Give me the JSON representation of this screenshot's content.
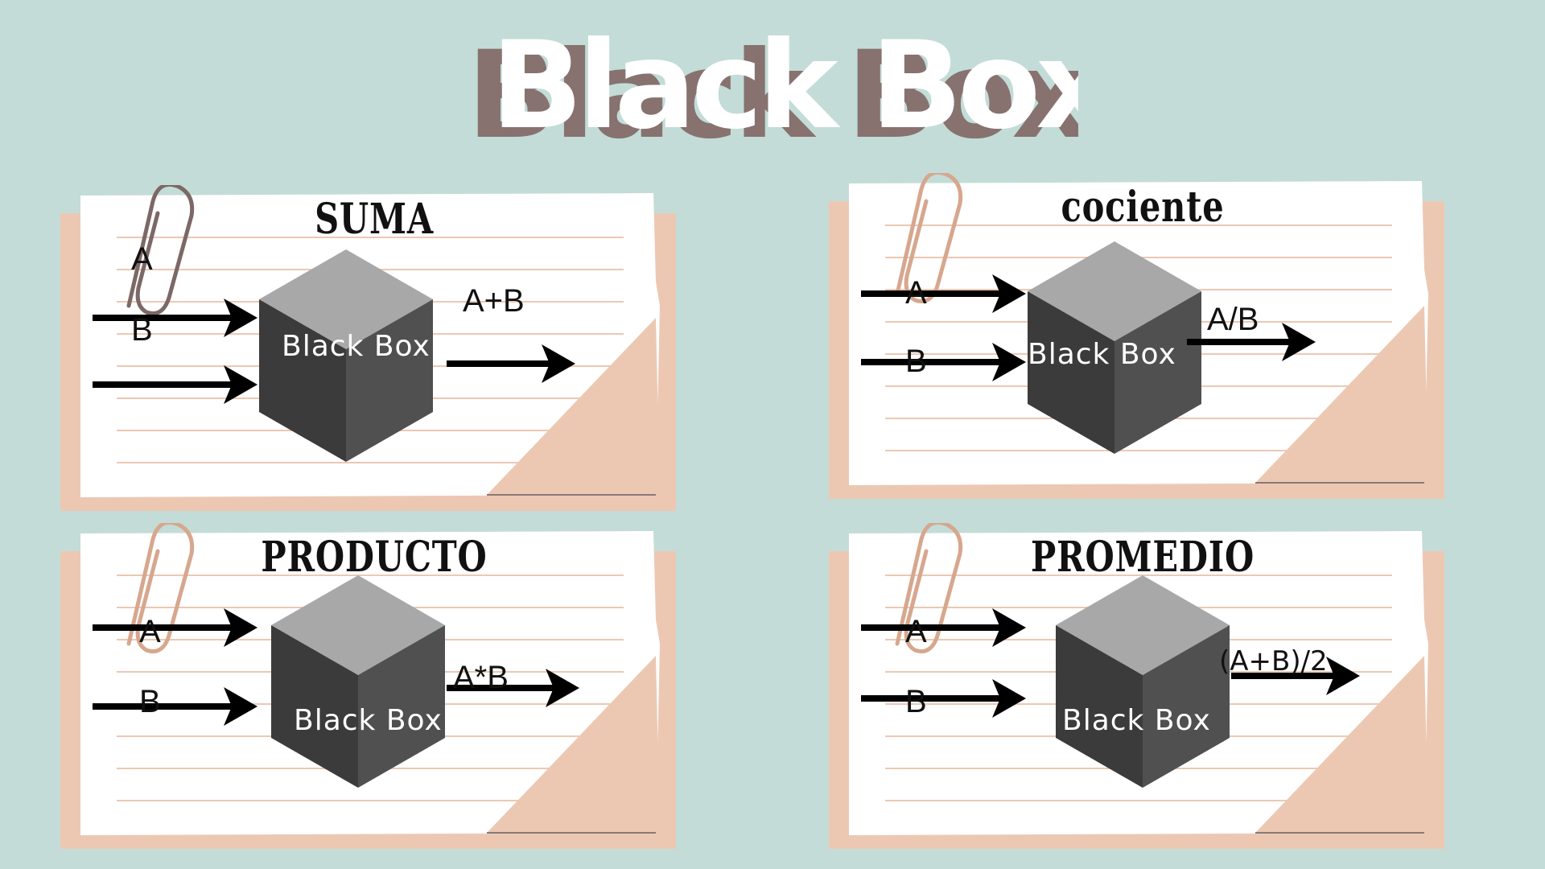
{
  "title": "Black Box",
  "cards": [
    {
      "title": "SUMA",
      "input_a": "A",
      "input_b": "B",
      "output": "A+B",
      "box_label": "Black Box"
    },
    {
      "title": "cociente",
      "input_a": "A",
      "input_b": "B",
      "output": "A/B",
      "box_label": "Black Box"
    },
    {
      "title": "PRODUCTO",
      "input_a": "A",
      "input_b": "B",
      "output": "A*B",
      "box_label": "Black Box"
    },
    {
      "title": "PROMEDIO",
      "input_a": "A",
      "input_b": "B",
      "output": "(A+B)/2",
      "box_label": "Black Box"
    }
  ],
  "colors": {
    "background": "#c3dcd7",
    "card_back": "#ecc8b3",
    "paper": "#ffffff",
    "rule_line": "#ecc8b3",
    "cube_top": "#a8a8a8",
    "cube_left": "#3b3b3b",
    "cube_right": "#505050",
    "title_shadow": "#87726f"
  }
}
